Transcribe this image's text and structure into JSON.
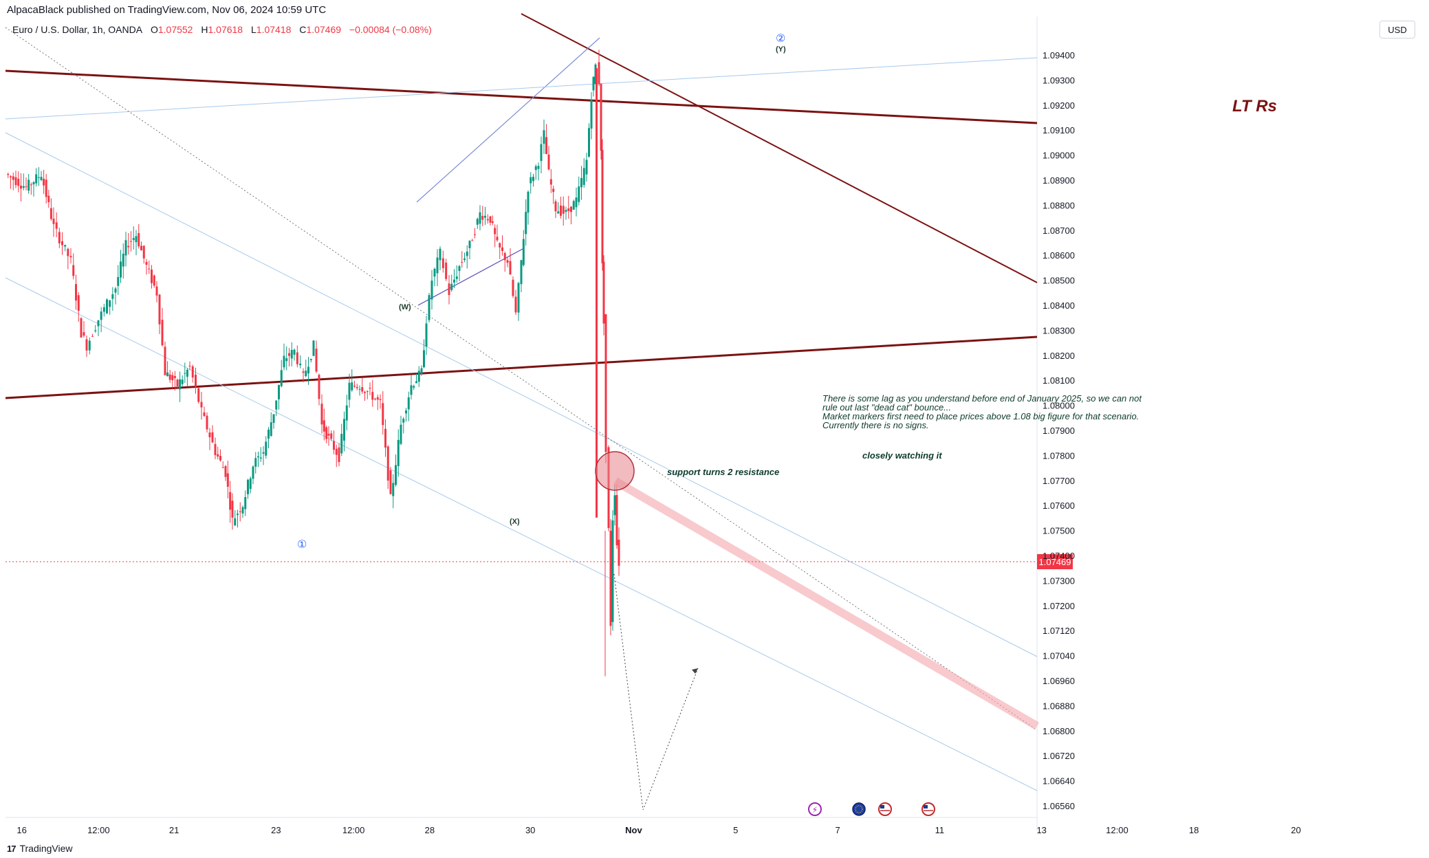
{
  "header": {
    "publisher_text": "AlpacaBlack published on TradingView.com, Nov 06, 2024 10:59 UTC",
    "symbol": "Euro / U.S. Dollar, 1h, OANDA",
    "open_label": "O",
    "open": "1.07552",
    "high_label": "H",
    "high": "1.07618",
    "low_label": "L",
    "low": "1.07418",
    "close_label": "C",
    "close": "1.07469",
    "change": "−0.00084 (−0.08%)",
    "currency_button": "USD"
  },
  "footer": {
    "brand": "TradingView",
    "logo_mark": "17"
  },
  "chart_data": {
    "type": "line",
    "title": "",
    "y_axis": {
      "ticks": [
        "1.09400",
        "1.09300",
        "1.09200",
        "1.09100",
        "1.09000",
        "1.08900",
        "1.08800",
        "1.08700",
        "1.08600",
        "1.08500",
        "1.08400",
        "1.08300",
        "1.08200",
        "1.08100",
        "1.08000",
        "1.07900",
        "1.07800",
        "1.07700",
        "1.07600",
        "1.07500",
        "1.07400",
        "1.07300",
        "1.07200",
        "1.07120",
        "1.07040",
        "1.06960",
        "1.06880",
        "1.06800",
        "1.06720",
        "1.06640",
        "1.06560"
      ],
      "range": [
        1.0653,
        1.0953
      ]
    },
    "x_axis": {
      "ticks": [
        "16",
        "12:00",
        "21",
        "23",
        "12:00",
        "28",
        "30",
        "Nov",
        "5",
        "7",
        "11",
        "13",
        "12:00",
        "18",
        "20"
      ],
      "bold": [
        "Nov"
      ]
    },
    "current_price": {
      "value": 1.07469,
      "label": "1.07469",
      "color": "#f23645"
    },
    "price_path": [
      [
        0,
        1.0895
      ],
      [
        30,
        1.089
      ],
      [
        52,
        1.0895
      ],
      [
        70,
        1.0875
      ],
      [
        95,
        1.0862
      ],
      [
        110,
        1.0835
      ],
      [
        118,
        1.083
      ],
      [
        135,
        1.084
      ],
      [
        160,
        1.0852
      ],
      [
        175,
        1.0868
      ],
      [
        190,
        1.0872
      ],
      [
        205,
        1.086
      ],
      [
        220,
        1.085
      ],
      [
        232,
        1.082
      ],
      [
        250,
        1.0815
      ],
      [
        268,
        1.0822
      ],
      [
        285,
        1.0805
      ],
      [
        305,
        1.079
      ],
      [
        320,
        1.0782
      ],
      [
        330,
        1.0764
      ],
      [
        345,
        1.077
      ],
      [
        360,
        1.0785
      ],
      [
        375,
        1.079
      ],
      [
        390,
        1.0805
      ],
      [
        405,
        1.0825
      ],
      [
        420,
        1.0828
      ],
      [
        433,
        1.0818
      ],
      [
        448,
        1.083
      ],
      [
        460,
        1.08
      ],
      [
        470,
        1.0795
      ],
      [
        485,
        1.0788
      ],
      [
        500,
        1.0815
      ],
      [
        515,
        1.0815
      ],
      [
        530,
        1.0812
      ],
      [
        545,
        1.0808
      ],
      [
        560,
        1.0772
      ],
      [
        575,
        1.08
      ],
      [
        590,
        1.0815
      ],
      [
        605,
        1.082
      ],
      [
        612,
        1.084
      ],
      [
        620,
        1.0855
      ],
      [
        632,
        1.0865
      ],
      [
        645,
        1.085
      ],
      [
        660,
        1.086
      ],
      [
        675,
        1.0868
      ],
      [
        690,
        1.088
      ],
      [
        705,
        1.0878
      ],
      [
        715,
        1.0868
      ],
      [
        730,
        1.0862
      ],
      [
        742,
        1.0842
      ],
      [
        750,
        1.0862
      ],
      [
        760,
        1.089
      ],
      [
        775,
        1.09
      ],
      [
        783,
        1.091
      ],
      [
        790,
        1.0895
      ],
      [
        800,
        1.0882
      ],
      [
        815,
        1.088
      ],
      [
        830,
        1.0885
      ],
      [
        845,
        1.09
      ],
      [
        852,
        1.0925
      ],
      [
        858,
        1.0936
      ],
      [
        863,
        1.093
      ],
      [
        866,
        1.0905
      ],
      [
        868,
        1.086
      ],
      [
        870,
        1.084
      ],
      [
        873,
        1.079
      ],
      [
        877,
        1.076
      ],
      [
        880,
        1.0725
      ],
      [
        883,
        1.0765
      ],
      [
        886,
        1.0775
      ],
      [
        889,
        1.0755
      ],
      [
        892,
        1.0748
      ]
    ],
    "lines": [
      {
        "name": "LT Rs",
        "color": "#7b1212",
        "from": [
          8,
          103
        ],
        "to": [
          1508,
          179
        ],
        "width": 3
      },
      {
        "color": "#7b1212",
        "from": [
          8,
          579
        ],
        "to": [
          1508,
          490
        ],
        "width": 3
      },
      {
        "color": "#7b1212",
        "from": [
          758,
          20
        ],
        "to": [
          1508,
          411
        ],
        "width": 2
      },
      {
        "color": "#7b8cd6",
        "from": [
          606,
          294
        ],
        "to": [
          872,
          55
        ],
        "width": 1.2
      },
      {
        "color": "#5b4ab8",
        "from": [
          608,
          444
        ],
        "to": [
          762,
          361
        ],
        "width": 1.2
      },
      {
        "color": "#a7c9ec",
        "from": [
          8,
          173
        ],
        "to": [
          1508,
          84
        ],
        "width": 1
      },
      {
        "color": "#a7c9ec",
        "from": [
          8,
          193
        ],
        "to": [
          1508,
          955
        ],
        "width": 1
      },
      {
        "color": "#a7c9ec",
        "from": [
          8,
          404
        ],
        "to": [
          1508,
          1150
        ],
        "width": 1
      }
    ],
    "annotations": {
      "lt_rs": "LT Rs",
      "note_lines": [
        "There is some lag as you understand before end of January 2025, so we can not",
        "rule out last \"dead cat\" bounce...",
        "Market markers first need to place prices above 1.08 big figure for that scenario.",
        "Currently there is no signs."
      ],
      "closely_watching": "closely watching it",
      "support_turns": "support turns 2 resistance",
      "wave_w": "(W)",
      "wave_x": "(X)",
      "wave_y": "(Y)",
      "wave_1": "①",
      "wave_2": "②"
    },
    "grid": false
  }
}
